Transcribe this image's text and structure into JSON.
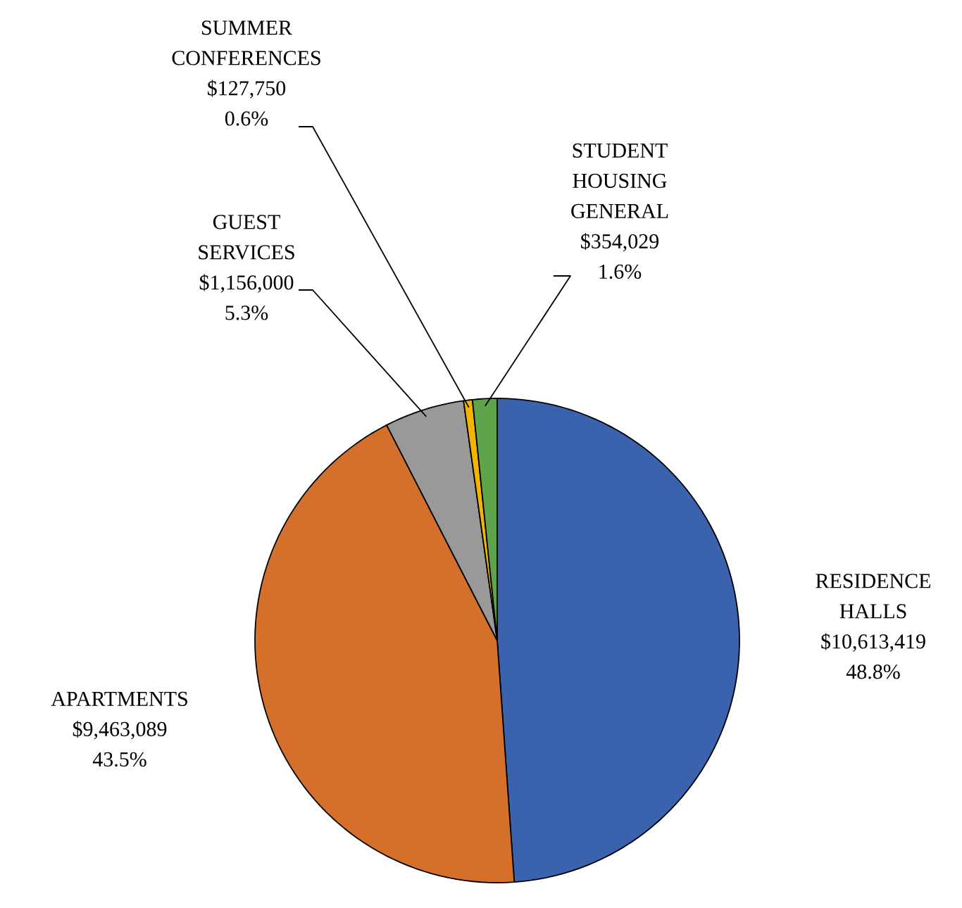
{
  "chart_data": {
    "type": "pie",
    "categories": [
      "RESIDENCE HALLS",
      "APARTMENTS",
      "GUEST SERVICES",
      "SUMMER CONFERENCES",
      "STUDENT HOUSING GENERAL"
    ],
    "values": [
      10613419,
      9463089,
      1156000,
      127750,
      354029
    ],
    "value_labels": [
      "$10,613,419 48.8%",
      "$9,463,089 43.5%",
      "$1,156,000 5.3%",
      "$127,750 0.6%",
      "$354,029 1.6%"
    ],
    "colors": [
      "#3a62ad",
      "#d4702b",
      "#999999",
      "#f2b400",
      "#5ea44a"
    ]
  }
}
